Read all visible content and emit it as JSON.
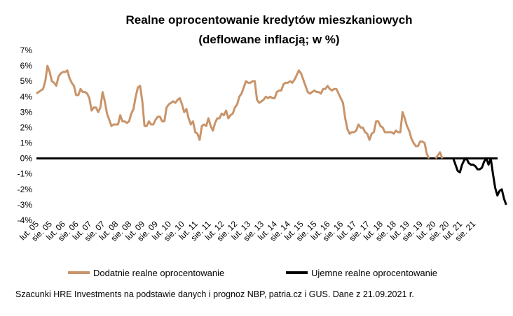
{
  "chart_data": {
    "type": "line",
    "title_line1": "Realne oprocentowanie kredytów mieszkaniowych",
    "title_line2": "(deflowane inflacją; w %)",
    "xlabel": "",
    "ylabel": "",
    "ylim": [
      -4,
      7
    ],
    "y_ticks": [
      "7%",
      "6%",
      "5%",
      "4%",
      "3%",
      "2%",
      "1%",
      "0%",
      "-1%",
      "-2%",
      "-3%",
      "-4%"
    ],
    "x_ticks": [
      "lut. 05",
      "sie. 05",
      "lut. 06",
      "sie. 06",
      "lut. 07",
      "sie. 07",
      "lut. 08",
      "sie. 08",
      "lut. 09",
      "sie. 09",
      "lut. 10",
      "sie. 10",
      "lut. 11",
      "sie. 11",
      "lut. 12",
      "sie. 12",
      "lut. 13",
      "sie. 13",
      "lut. 14",
      "sie. 14",
      "lut. 15",
      "sie. 15",
      "lut. 16",
      "sie. 16",
      "lut. 17",
      "sie. 17",
      "lut. 18",
      "sie. 18",
      "lut. 19",
      "sie. 19",
      "lut. 20",
      "sie. 20",
      "lut. 21",
      "sie. 21"
    ],
    "x_start": "2005-02",
    "grid": false,
    "legend_position": "bottom",
    "series": [
      {
        "name": "Dodatnie realne oprocentowanie",
        "color": "#C9946A",
        "values": [
          4.2,
          4.3,
          4.4,
          4.5,
          5.0,
          6.0,
          5.6,
          5.0,
          4.9,
          4.7,
          5.3,
          5.5,
          5.6,
          5.6,
          5.7,
          5.2,
          4.9,
          4.7,
          4.1,
          4.1,
          4.5,
          4.3,
          4.3,
          4.2,
          3.9,
          3.1,
          3.3,
          3.3,
          3.0,
          3.3,
          4.3,
          3.7,
          2.9,
          2.5,
          2.1,
          2.2,
          2.2,
          2.2,
          2.8,
          2.4,
          2.4,
          2.3,
          2.4,
          2.9,
          3.2,
          4.0,
          4.6,
          4.7,
          3.7,
          2.1,
          2.1,
          2.4,
          2.2,
          2.2,
          2.5,
          2.7,
          2.7,
          2.4,
          2.4,
          3.3,
          3.5,
          3.6,
          3.7,
          3.6,
          3.8,
          3.9,
          3.5,
          3.0,
          3.2,
          2.6,
          2.2,
          2.4,
          1.7,
          1.6,
          1.2,
          2.1,
          2.2,
          2.1,
          2.6,
          2.1,
          1.8,
          2.3,
          2.6,
          2.6,
          2.9,
          2.8,
          3.1,
          2.6,
          2.8,
          2.9,
          3.3,
          3.5,
          4.0,
          4.2,
          4.6,
          5.0,
          4.9,
          4.9,
          5.0,
          5.0,
          3.8,
          3.6,
          3.7,
          3.8,
          4.0,
          3.9,
          4.0,
          3.9,
          3.9,
          4.3,
          4.4,
          4.4,
          4.8,
          4.9,
          4.9,
          5.0,
          4.9,
          5.1,
          5.4,
          5.7,
          5.5,
          5.1,
          4.7,
          4.3,
          4.2,
          4.3,
          4.4,
          4.3,
          4.3,
          4.2,
          4.5,
          4.5,
          4.7,
          4.5,
          4.4,
          4.5,
          4.5,
          4.2,
          3.9,
          3.6,
          2.6,
          1.9,
          1.6,
          1.7,
          1.7,
          1.8,
          2.2,
          2.0,
          2.0,
          1.7,
          1.6,
          1.2,
          1.6,
          1.7,
          2.4,
          2.4,
          2.1,
          2.0,
          1.7,
          1.7,
          1.7,
          1.7,
          1.6,
          1.8,
          1.7,
          1.7,
          3.0,
          2.6,
          2.1,
          1.8,
          1.3,
          1.0,
          0.8,
          0.8,
          1.1,
          1.1,
          1.0,
          0.3,
          0,
          0,
          0,
          0,
          0.2,
          0.4,
          0,
          0,
          0,
          0,
          0,
          0,
          0,
          0,
          0,
          0,
          0,
          0,
          0,
          0,
          0,
          0,
          0,
          0,
          0,
          0,
          0,
          0,
          0,
          0,
          0,
          0,
          0,
          0
        ]
      },
      {
        "name": "Ujemne realne oprocentowanie",
        "color": "#000000",
        "values": [
          0,
          0,
          0,
          0,
          0,
          0,
          0,
          0,
          0,
          0,
          0,
          0,
          0,
          0,
          0,
          0,
          0,
          0,
          0,
          0,
          0,
          0,
          0,
          0,
          0,
          0,
          0,
          0,
          0,
          0,
          0,
          0,
          0,
          0,
          0,
          0,
          0,
          0,
          0,
          0,
          0,
          0,
          0,
          0,
          0,
          0,
          0,
          0,
          0,
          0,
          0,
          0,
          0,
          0,
          0,
          0,
          0,
          0,
          0,
          0,
          0,
          0,
          0,
          0,
          0,
          0,
          0,
          0,
          0,
          0,
          0,
          0,
          0,
          0,
          0,
          0,
          0,
          0,
          0,
          0,
          0,
          0,
          0,
          0,
          0,
          0,
          0,
          0,
          0,
          0,
          0,
          0,
          0,
          0,
          0,
          0,
          0,
          0,
          0,
          0,
          0,
          0,
          0,
          0,
          0,
          0,
          0,
          0,
          0,
          0,
          0,
          0,
          0,
          0,
          0,
          0,
          0,
          0,
          0,
          0,
          0,
          0,
          0,
          0,
          0,
          0,
          0,
          0,
          0,
          0,
          0,
          0,
          0,
          0,
          0,
          0,
          0,
          0,
          0,
          0,
          0,
          0,
          0,
          0,
          0,
          0,
          0,
          0,
          0,
          0,
          0,
          0,
          0,
          0,
          0,
          0,
          0,
          0,
          0,
          0,
          0,
          0,
          0,
          0,
          0,
          0,
          0,
          0,
          0,
          0,
          0,
          0,
          0,
          0,
          0,
          0,
          0,
          0,
          0,
          0,
          0,
          0,
          0,
          0,
          0,
          0,
          0,
          0,
          0,
          0,
          -0.4,
          -0.8,
          -0.9,
          -0.4,
          -0.1,
          0,
          -0.3,
          -0.4,
          -0.4,
          -0.5,
          -0.7,
          -0.7,
          -0.6,
          -0.2,
          0,
          -0.4,
          0,
          -1.0,
          -1.9,
          -2.4,
          -2.1,
          -2.0,
          -2.6,
          -3.0
        ]
      }
    ]
  },
  "source_text": "Szacunki HRE Investments na podstawie danych i prognoz NBP,  patria.cz  i GUS. Dane z 21.09.2021 r."
}
